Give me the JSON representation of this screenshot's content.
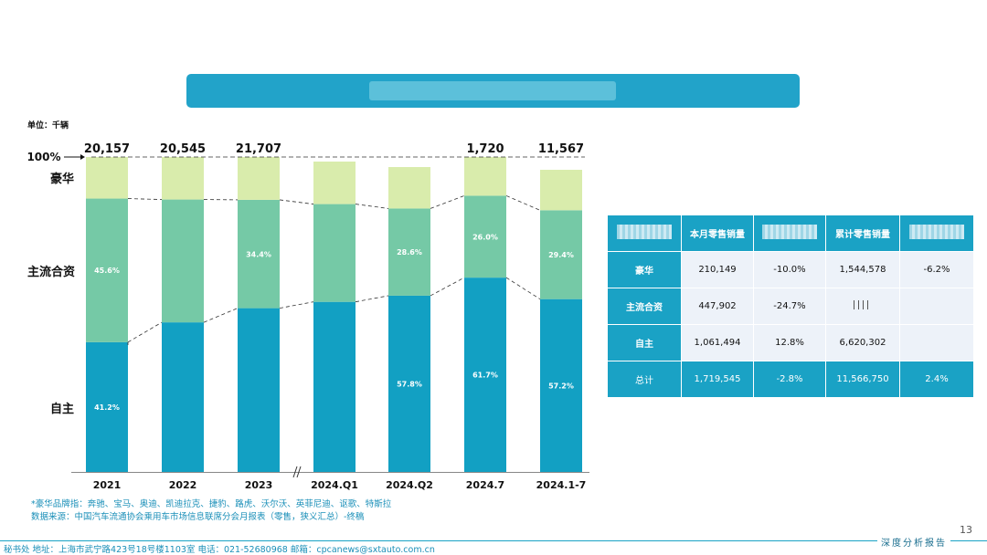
{
  "unit_label": "单位：千辆",
  "chart_data": {
    "type": "stacked-bar-percent",
    "categories": [
      "2021",
      "2022",
      "2023",
      "2024.Q1",
      "2024.Q2",
      "2024.7",
      "2024.1-7"
    ],
    "totals": [
      "20,157",
      "20,545",
      "21,707",
      "",
      "",
      "1,720",
      "11,567"
    ],
    "series": [
      {
        "name": "自主",
        "values": [
          41.2,
          47.5,
          52.0,
          54.8,
          57.8,
          61.7,
          57.2
        ],
        "labels": [
          "41.2%",
          "",
          "",
          "",
          "57.8%",
          "61.7%",
          "57.2%"
        ],
        "color": "#12a0c3"
      },
      {
        "name": "主流合资",
        "values": [
          45.6,
          39.0,
          34.4,
          31.5,
          28.6,
          26.0,
          29.4
        ],
        "labels": [
          "45.6%",
          "",
          "34.4%",
          "",
          "28.6%",
          "26.0%",
          "29.4%"
        ],
        "color": "#75c9a6"
      },
      {
        "name": "豪华",
        "values": [
          13.2,
          13.5,
          13.6,
          13.7,
          13.6,
          12.3,
          13.4
        ],
        "labels": [
          "",
          "",
          "",
          "",
          "",
          "",
          ""
        ],
        "color": "#d9ecac"
      }
    ],
    "left_labels": {
      "pct100": "100%",
      "luxury": "豪华",
      "jv": "主流合资",
      "own": "自主"
    }
  },
  "table": {
    "headers": [
      "",
      "本月零售销量",
      "",
      "累计零售销量",
      ""
    ],
    "rows": [
      {
        "name": "豪华",
        "month": "210,149",
        "month_chg": "-10.0%",
        "ytd": "1,544,578",
        "ytd_chg": "-6.2%"
      },
      {
        "name": "主流合资",
        "month": "447,902",
        "month_chg": "-24.7%",
        "ytd": "",
        "ytd_chg": ""
      },
      {
        "name": "自主",
        "month": "1,061,494",
        "month_chg": "12.8%",
        "ytd": "6,620,302",
        "ytd_chg": ""
      }
    ],
    "total": {
      "name": "总计",
      "month": "1,719,545",
      "month_chg": "-2.8%",
      "ytd": "11,566,750",
      "ytd_chg": "2.4%"
    }
  },
  "notes": {
    "line1": "*豪华品牌指：奔驰、宝马、奥迪、凯迪拉克、捷豹、路虎、沃尔沃、英菲尼迪、讴歌、特斯拉",
    "line2": "数据来源：中国汽车流通协会乘用车市场信息联席分会月报表（零售，狭义汇总）-终稿"
  },
  "footer": {
    "text": "秘书处  地址：上海市武宁路423号18号楼1103室  电话：021-52680968  邮箱：cpcanews@sxtauto.com.cn",
    "right": "深度分析报告",
    "page": "13"
  }
}
